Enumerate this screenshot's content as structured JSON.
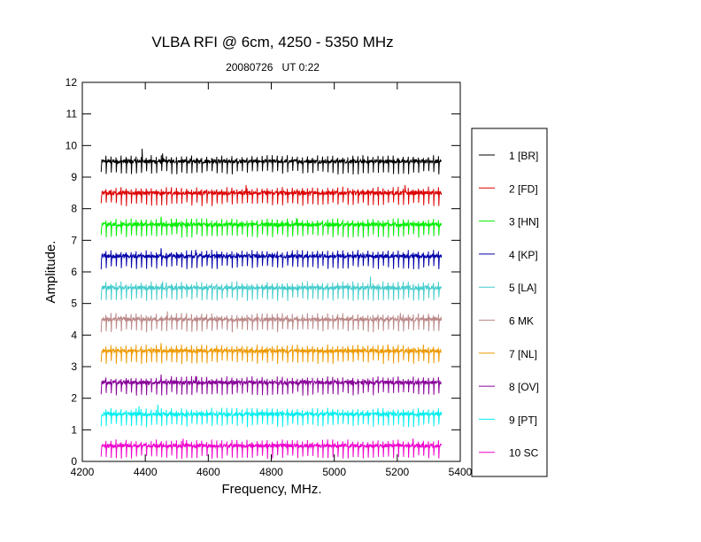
{
  "chart_data": {
    "type": "line",
    "title": "VLBA RFI @ 6cm, 4250 - 5350 MHz",
    "subtitle": "20080726   UT 0:22",
    "xlabel": "Frequency, MHz.",
    "ylabel": "Amplitude.",
    "xlim": [
      4200,
      5400
    ],
    "ylim": [
      0,
      12
    ],
    "x_ticks": [
      "4200",
      "4400",
      "4600",
      "4800",
      "5000",
      "5200",
      "5400"
    ],
    "y_ticks": [
      "0",
      "1",
      "2",
      "3",
      "4",
      "5",
      "6",
      "7",
      "8",
      "9",
      "10",
      "11",
      "12"
    ],
    "x_range": [
      4260,
      5340
    ],
    "channel_spacing_mhz": 16,
    "legend_position": "right",
    "grid": false,
    "series": [
      {
        "name": "1 [BR]",
        "color": "#000000",
        "baseline": 9.5,
        "spikes": [
          {
            "x": 4390,
            "y": 9.9
          },
          {
            "x": 4455,
            "y": 9.75
          }
        ]
      },
      {
        "name": "2 [FD]",
        "color": "#dd0000",
        "baseline": 8.5,
        "spikes": [
          {
            "x": 4720,
            "y": 8.75
          },
          {
            "x": 5225,
            "y": 8.75
          }
        ]
      },
      {
        "name": "3 [HN]",
        "color": "#00ee00",
        "baseline": 7.5,
        "spikes": [
          {
            "x": 4450,
            "y": 7.75
          },
          {
            "x": 4880,
            "y": 7.7
          }
        ]
      },
      {
        "name": "4 [KP]",
        "color": "#0000aa",
        "baseline": 6.5,
        "spikes": [
          {
            "x": 4450,
            "y": 6.75
          },
          {
            "x": 4560,
            "y": 6.7
          }
        ]
      },
      {
        "name": "5 [LA]",
        "color": "#44cccc",
        "baseline": 5.5,
        "spikes": [
          {
            "x": 5115,
            "y": 5.85
          },
          {
            "x": 4455,
            "y": 5.7
          }
        ]
      },
      {
        "name": "6 MK",
        "color": "#bb8888",
        "baseline": 4.5,
        "spikes": [
          {
            "x": 4470,
            "y": 4.75
          },
          {
            "x": 5210,
            "y": 4.7
          }
        ]
      },
      {
        "name": "7 [NL]",
        "color": "#ee9900",
        "baseline": 3.5,
        "spikes": [
          {
            "x": 4450,
            "y": 3.75
          },
          {
            "x": 5170,
            "y": 3.7
          }
        ]
      },
      {
        "name": "8 [OV]",
        "color": "#880099",
        "baseline": 2.5,
        "spikes": [
          {
            "x": 4450,
            "y": 2.75
          },
          {
            "x": 4560,
            "y": 2.7
          }
        ]
      },
      {
        "name": "9 [PT]",
        "color": "#00eeee",
        "baseline": 1.5,
        "spikes": [
          {
            "x": 4440,
            "y": 1.8
          },
          {
            "x": 4380,
            "y": 1.75
          }
        ]
      },
      {
        "name": "10 SC",
        "color": "#ee00cc",
        "baseline": 0.5,
        "spikes": [
          {
            "x": 4520,
            "y": 0.72
          },
          {
            "x": 5250,
            "y": 0.72
          }
        ]
      }
    ]
  }
}
